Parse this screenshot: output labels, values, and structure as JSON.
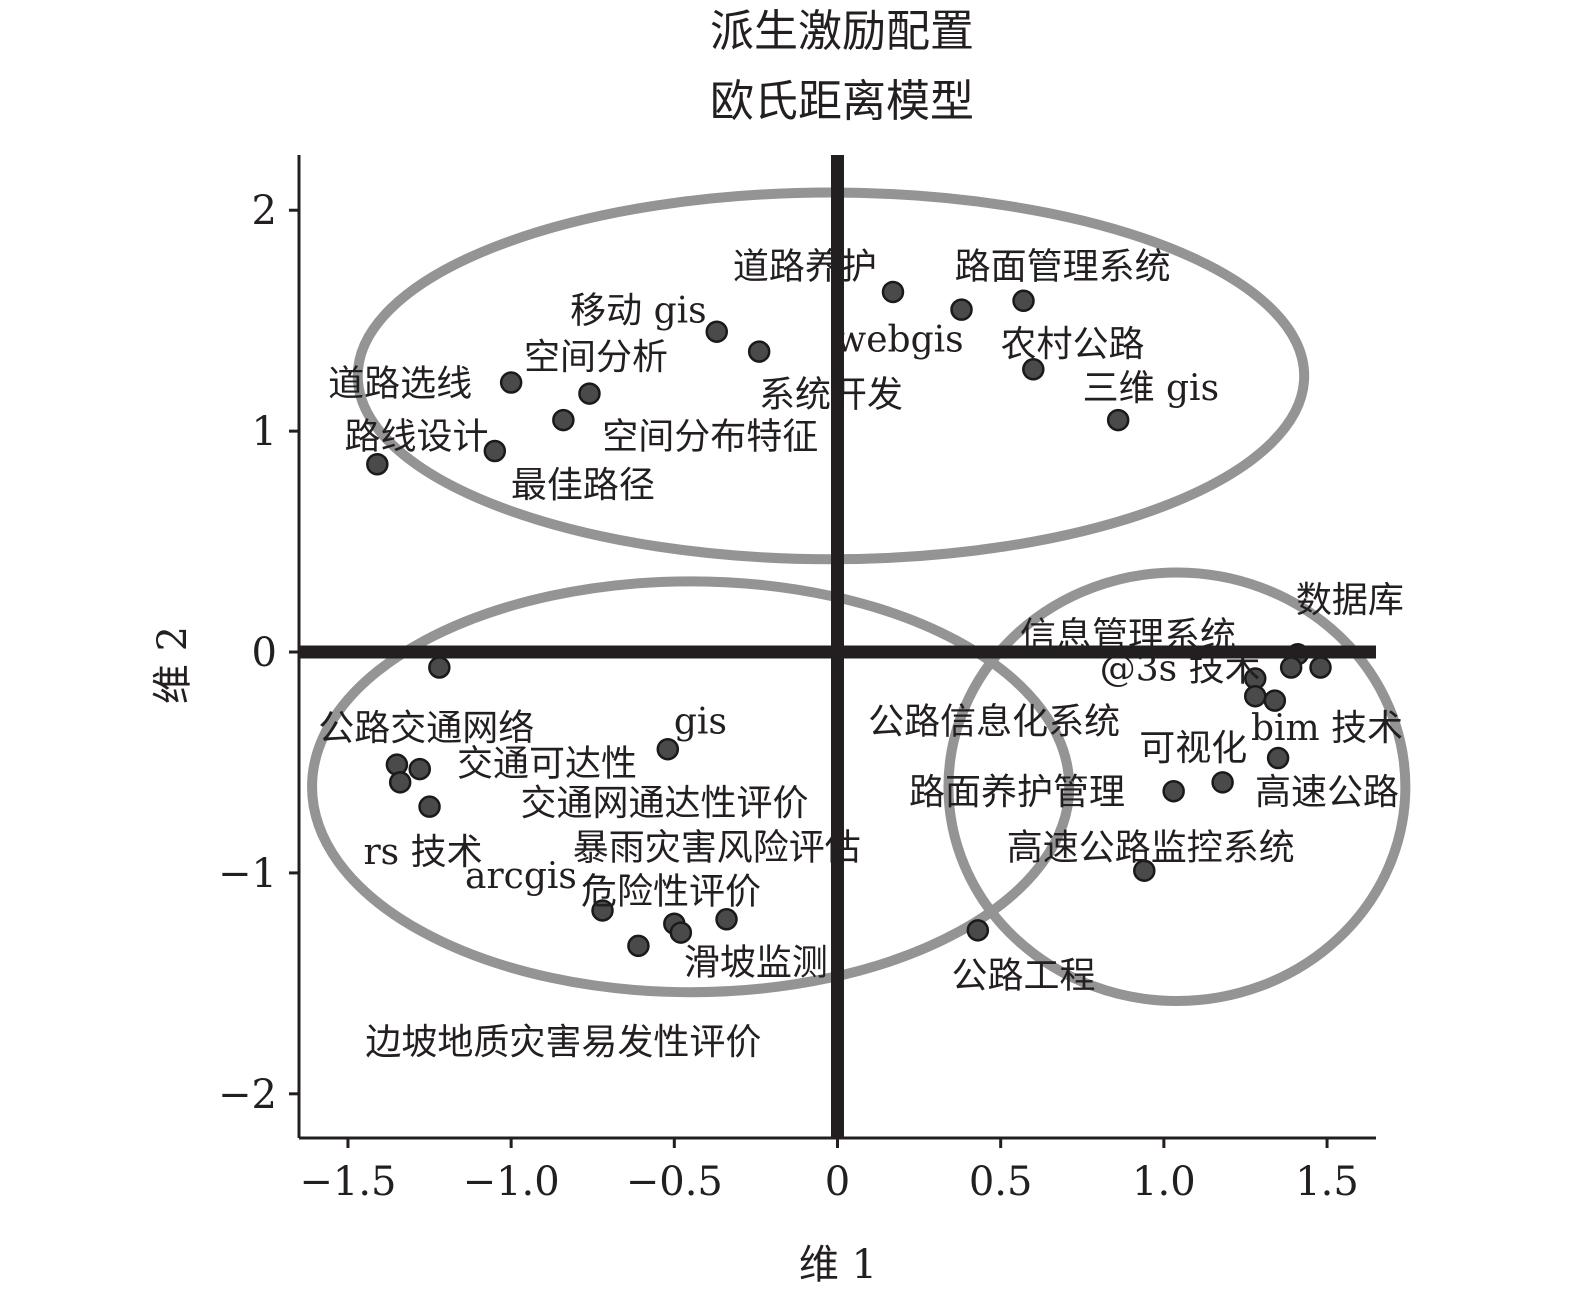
{
  "chart_data": {
    "type": "scatter",
    "title": "派生激励配置",
    "subtitle": "欧氏距离模型",
    "xlabel": "维 1",
    "ylabel": "维 2",
    "xlim": [
      -1.65,
      1.65
    ],
    "ylim": [
      -2.2,
      2.25
    ],
    "x_ticks": [
      -1.5,
      -1.0,
      -0.5,
      0,
      0.5,
      1.0,
      1.5
    ],
    "x_tick_labels": [
      "−1.5",
      "−1.0",
      "−0.5",
      "0",
      "0.5",
      "1.0",
      "1.5"
    ],
    "y_ticks": [
      2,
      1,
      0,
      -1,
      -2
    ],
    "y_tick_labels": [
      "2",
      "1",
      "0",
      "−1",
      "−2"
    ],
    "grid": false,
    "point_color": "#4a4a4a",
    "ellipse_color": "#949494",
    "axis_color": "#231f20",
    "points": [
      {
        "x": 0.17,
        "y": 1.63
      },
      {
        "x": 0.38,
        "y": 1.55
      },
      {
        "x": 0.57,
        "y": 1.59
      },
      {
        "x": -0.37,
        "y": 1.45
      },
      {
        "x": -0.24,
        "y": 1.36
      },
      {
        "x": 0.6,
        "y": 1.28
      },
      {
        "x": -1.0,
        "y": 1.22
      },
      {
        "x": -0.76,
        "y": 1.17
      },
      {
        "x": -0.84,
        "y": 1.05
      },
      {
        "x": 0.86,
        "y": 1.05
      },
      {
        "x": -1.05,
        "y": 0.91
      },
      {
        "x": -1.41,
        "y": 0.85
      },
      {
        "x": -1.22,
        "y": -0.07
      },
      {
        "x": 1.41,
        "y": -0.01
      },
      {
        "x": 1.39,
        "y": -0.07
      },
      {
        "x": 1.48,
        "y": -0.07
      },
      {
        "x": 1.28,
        "y": -0.12
      },
      {
        "x": 1.28,
        "y": -0.2
      },
      {
        "x": 1.34,
        "y": -0.22
      },
      {
        "x": 1.35,
        "y": -0.48
      },
      {
        "x": 1.18,
        "y": -0.59
      },
      {
        "x": 1.03,
        "y": -0.63
      },
      {
        "x": -0.52,
        "y": -0.44
      },
      {
        "x": -1.35,
        "y": -0.51
      },
      {
        "x": -1.28,
        "y": -0.53
      },
      {
        "x": -1.34,
        "y": -0.59
      },
      {
        "x": -1.25,
        "y": -0.7
      },
      {
        "x": 0.94,
        "y": -0.99
      },
      {
        "x": -0.72,
        "y": -1.17
      },
      {
        "x": -0.5,
        "y": -1.23
      },
      {
        "x": -0.34,
        "y": -1.21
      },
      {
        "x": -0.48,
        "y": -1.27
      },
      {
        "x": -0.61,
        "y": -1.33
      },
      {
        "x": 0.43,
        "y": -1.26
      }
    ],
    "labels": [
      {
        "text": "道路养护",
        "x": -0.1,
        "y": 1.75
      },
      {
        "text": "路面管理系统",
        "x": 0.69,
        "y": 1.75
      },
      {
        "text": "移动 gis",
        "x": -0.61,
        "y": 1.55
      },
      {
        "text": "webgis",
        "x": 0.19,
        "y": 1.42
      },
      {
        "text": "农村公路",
        "x": 0.72,
        "y": 1.4
      },
      {
        "text": "空间分析",
        "x": -0.74,
        "y": 1.34
      },
      {
        "text": "道路选线",
        "x": -1.34,
        "y": 1.22
      },
      {
        "text": "三维 gis",
        "x": 0.96,
        "y": 1.2
      },
      {
        "text": "系统开发",
        "x": -0.02,
        "y": 1.17
      },
      {
        "text": "空间分布特征",
        "x": -0.39,
        "y": 0.98
      },
      {
        "text": "路线设计",
        "x": -1.29,
        "y": 0.98
      },
      {
        "text": "最佳路径",
        "x": -0.78,
        "y": 0.76
      },
      {
        "text": "数据库",
        "x": 1.57,
        "y": 0.24
      },
      {
        "text": "信息管理系统",
        "x": 0.89,
        "y": 0.08
      },
      {
        "text": "@3s 技术",
        "x": 1.05,
        "y": -0.07
      },
      {
        "text": "公路信息化系统",
        "x": 0.48,
        "y": -0.31
      },
      {
        "text": "公路交通网络",
        "x": -1.26,
        "y": -0.34
      },
      {
        "text": "gis",
        "x": -0.42,
        "y": -0.31
      },
      {
        "text": "bim 技术",
        "x": 1.5,
        "y": -0.34
      },
      {
        "text": "可视化",
        "x": 1.09,
        "y": -0.43
      },
      {
        "text": "交通可达性",
        "x": -0.89,
        "y": -0.5
      },
      {
        "text": "高速公路",
        "x": 1.5,
        "y": -0.63
      },
      {
        "text": "路面养护管理",
        "x": 0.55,
        "y": -0.63
      },
      {
        "text": "交通网通达性评价",
        "x": -0.53,
        "y": -0.68
      },
      {
        "text": "暴雨灾害风险评估",
        "x": -0.37,
        "y": -0.88
      },
      {
        "text": "高速公路监控系统",
        "x": 0.96,
        "y": -0.88
      },
      {
        "text": "rs 技术",
        "x": -1.27,
        "y": -0.9
      },
      {
        "text": "arcgis",
        "x": -0.97,
        "y": -1.01
      },
      {
        "text": "危险性评价",
        "x": -0.51,
        "y": -1.08
      },
      {
        "text": "滑坡监测",
        "x": -0.25,
        "y": -1.4
      },
      {
        "text": "公路工程",
        "x": 0.57,
        "y": -1.46
      },
      {
        "text": "边坡地质灾害易发性评价",
        "x": -0.84,
        "y": -1.76
      }
    ],
    "ellipses": [
      {
        "cx": -0.02,
        "cy": 1.25,
        "rx": 1.45,
        "ry": 0.83
      },
      {
        "cx": -0.45,
        "cy": -0.61,
        "rx": 1.16,
        "ry": 0.93
      },
      {
        "cx": 1.04,
        "cy": -0.61,
        "rx": 0.7,
        "ry": 0.97
      }
    ]
  }
}
